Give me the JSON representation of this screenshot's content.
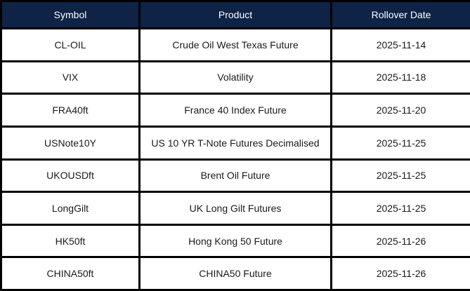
{
  "table": {
    "columns": [
      {
        "key": "symbol",
        "label": "Symbol"
      },
      {
        "key": "product",
        "label": "Product"
      },
      {
        "key": "rollover",
        "label": "Rollover Date"
      }
    ],
    "rows": [
      {
        "symbol": "CL-OIL",
        "product": "Crude Oil West Texas Future",
        "rollover": "2025-11-14"
      },
      {
        "symbol": "VIX",
        "product": "Volatility",
        "rollover": "2025-11-18"
      },
      {
        "symbol": "FRA40ft",
        "product": "France 40 Index Future",
        "rollover": "2025-11-20"
      },
      {
        "symbol": "USNote10Y",
        "product": "US 10 YR T-Note Futures Decimalised",
        "rollover": "2025-11-25"
      },
      {
        "symbol": "UKOUSDft",
        "product": "Brent Oil Future",
        "rollover": "2025-11-25"
      },
      {
        "symbol": "LongGilt",
        "product": "UK Long Gilt Futures",
        "rollover": "2025-11-25"
      },
      {
        "symbol": "HK50ft",
        "product": "Hong Kong 50 Future",
        "rollover": "2025-11-26"
      },
      {
        "symbol": "CHINA50ft",
        "product": "CHINA50 Future",
        "rollover": "2025-11-26"
      }
    ],
    "colors": {
      "header_bg": "#0f2347",
      "header_text": "#ffffff",
      "border": "#000000",
      "row_bg": "#ffffff",
      "cell_text": "#1a1a1a"
    }
  }
}
